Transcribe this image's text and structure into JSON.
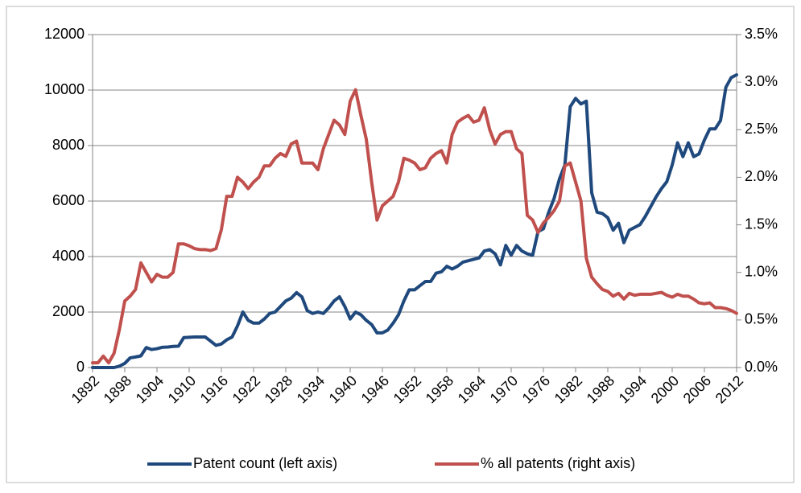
{
  "chart_data": {
    "type": "line",
    "x": [
      1892,
      1893,
      1894,
      1895,
      1896,
      1897,
      1898,
      1899,
      1900,
      1901,
      1902,
      1903,
      1904,
      1905,
      1906,
      1907,
      1908,
      1909,
      1910,
      1911,
      1912,
      1913,
      1914,
      1915,
      1916,
      1917,
      1918,
      1919,
      1920,
      1921,
      1922,
      1923,
      1924,
      1925,
      1926,
      1927,
      1928,
      1929,
      1930,
      1931,
      1932,
      1933,
      1934,
      1935,
      1936,
      1937,
      1938,
      1939,
      1940,
      1941,
      1942,
      1943,
      1944,
      1945,
      1946,
      1947,
      1948,
      1949,
      1950,
      1951,
      1952,
      1953,
      1954,
      1955,
      1956,
      1957,
      1958,
      1959,
      1960,
      1961,
      1962,
      1963,
      1964,
      1965,
      1966,
      1967,
      1968,
      1969,
      1970,
      1971,
      1972,
      1973,
      1974,
      1975,
      1976,
      1977,
      1978,
      1979,
      1980,
      1981,
      1982,
      1983,
      1984,
      1985,
      1986,
      1987,
      1988,
      1989,
      1990,
      1991,
      1992,
      1993,
      1994,
      1995,
      1996,
      1997,
      1998,
      1999,
      2000,
      2001,
      2002,
      2003,
      2004,
      2005,
      2006,
      2007,
      2008,
      2009,
      2010,
      2011,
      2012
    ],
    "series": [
      {
        "name": "Patent count (left axis)",
        "color": "#1f497d",
        "axis": "y",
        "values": [
          0,
          0,
          0,
          0,
          0,
          50,
          150,
          350,
          380,
          420,
          720,
          650,
          680,
          730,
          740,
          760,
          770,
          1080,
          1090,
          1100,
          1100,
          1100,
          950,
          800,
          850,
          1000,
          1100,
          1500,
          2000,
          1700,
          1600,
          1600,
          1750,
          1950,
          2000,
          2200,
          2400,
          2500,
          2700,
          2550,
          2050,
          1950,
          2000,
          1950,
          2150,
          2400,
          2550,
          2200,
          1750,
          2000,
          1900,
          1700,
          1550,
          1250,
          1250,
          1350,
          1600,
          1900,
          2400,
          2800,
          2800,
          2950,
          3100,
          3100,
          3400,
          3450,
          3650,
          3550,
          3650,
          3800,
          3850,
          3900,
          3950,
          4200,
          4250,
          4100,
          3700,
          4400,
          4050,
          4400,
          4200,
          4100,
          4050,
          4900,
          5000,
          5600,
          6100,
          6800,
          7300,
          9400,
          9700,
          9500,
          9600,
          6300,
          5600,
          5550,
          5400,
          4950,
          5200,
          4500,
          4950,
          5050,
          5150,
          5450,
          5800,
          6150,
          6450,
          6700,
          7300,
          8100,
          7600,
          8100,
          7600,
          7700,
          8200,
          8600,
          8600,
          8900,
          10100,
          10450,
          10550
        ]
      },
      {
        "name": "% all patents (right axis)",
        "color": "#c0504d",
        "axis": "y2",
        "values": [
          0.05,
          0.05,
          0.12,
          0.05,
          0.15,
          0.4,
          0.7,
          0.75,
          0.82,
          1.1,
          1.0,
          0.9,
          0.98,
          0.95,
          0.95,
          1.0,
          1.3,
          1.3,
          1.28,
          1.25,
          1.24,
          1.24,
          1.23,
          1.25,
          1.45,
          1.8,
          1.8,
          2.0,
          1.95,
          1.88,
          1.95,
          2.0,
          2.12,
          2.12,
          2.2,
          2.25,
          2.22,
          2.35,
          2.38,
          2.15,
          2.15,
          2.15,
          2.08,
          2.3,
          2.45,
          2.6,
          2.55,
          2.45,
          2.8,
          2.92,
          2.65,
          2.4,
          1.95,
          1.55,
          1.7,
          1.75,
          1.8,
          1.95,
          2.2,
          2.18,
          2.15,
          2.08,
          2.1,
          2.2,
          2.25,
          2.28,
          2.15,
          2.45,
          2.58,
          2.62,
          2.65,
          2.58,
          2.6,
          2.73,
          2.5,
          2.35,
          2.45,
          2.48,
          2.48,
          2.3,
          2.25,
          1.6,
          1.55,
          1.42,
          1.52,
          1.58,
          1.65,
          1.75,
          2.12,
          2.15,
          1.95,
          1.75,
          1.15,
          0.95,
          0.88,
          0.82,
          0.8,
          0.75,
          0.78,
          0.72,
          0.78,
          0.76,
          0.77,
          0.77,
          0.77,
          0.78,
          0.79,
          0.76,
          0.74,
          0.77,
          0.75,
          0.75,
          0.72,
          0.68,
          0.67,
          0.68,
          0.63,
          0.63,
          0.62,
          0.6,
          0.57
        ]
      }
    ],
    "xlim": [
      1892,
      2012
    ],
    "xticks": [
      1892,
      1898,
      1904,
      1910,
      1916,
      1922,
      1928,
      1934,
      1940,
      1946,
      1952,
      1958,
      1964,
      1970,
      1976,
      1982,
      1988,
      1994,
      2000,
      2006,
      2012
    ],
    "ylim": [
      0,
      12000
    ],
    "yticks": [
      0,
      2000,
      4000,
      6000,
      8000,
      10000,
      12000
    ],
    "y2lim": [
      0,
      3.5
    ],
    "y2ticks": [
      {
        "value": 0,
        "label": "0.0%"
      },
      {
        "value": 0.5,
        "label": "0.5%"
      },
      {
        "value": 1,
        "label": "1.0%"
      },
      {
        "value": 1.5,
        "label": "1.5%"
      },
      {
        "value": 2,
        "label": "2.0%"
      },
      {
        "value": 2.5,
        "label": "2.5%"
      },
      {
        "value": 3,
        "label": "3.0%"
      },
      {
        "value": 3.5,
        "label": "3.5%"
      }
    ],
    "grid": true,
    "legend": "bottom"
  }
}
